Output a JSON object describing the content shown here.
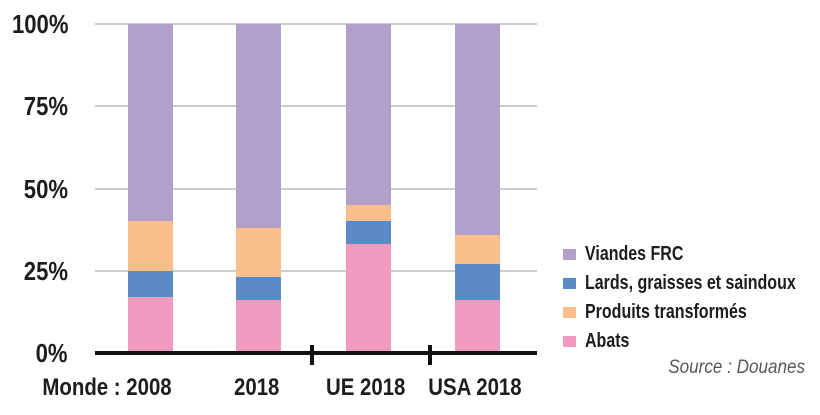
{
  "chart_data": {
    "type": "bar",
    "stacked": true,
    "unit": "percent",
    "categories": [
      "Monde : 2008",
      "2018",
      "UE 2018",
      "USA 2018"
    ],
    "series": [
      {
        "name": "Abats",
        "color": "#f29bc1",
        "values": [
          17,
          16,
          33,
          16
        ]
      },
      {
        "name": "Lards, graisses et saindoux",
        "color": "#5b8bc7",
        "values": [
          8,
          7,
          7,
          11
        ]
      },
      {
        "name": "Produits transformés",
        "color": "#fbbf8d",
        "values": [
          15,
          15,
          5,
          9
        ]
      },
      {
        "name": "Viandes FRC",
        "color": "#b0a0ca",
        "values": [
          60,
          62,
          55,
          64
        ]
      }
    ],
    "y_axis": {
      "min": 0,
      "max": 100,
      "ticks": [
        {
          "label": "0%",
          "value": 0
        },
        {
          "label": "25%",
          "value": 25
        },
        {
          "label": "50%",
          "value": 50
        },
        {
          "label": "75%",
          "value": 75
        },
        {
          "label": "100%",
          "value": 100
        }
      ],
      "gridlines": true
    },
    "legend_position": "right",
    "source": "Source : Douanes"
  },
  "legend": {
    "items": [
      {
        "label": "Viandes FRC",
        "color": "#b0a0ca"
      },
      {
        "label": "Lards, graisses et saindoux",
        "color": "#5b8bc7"
      },
      {
        "label": "Produits transformés",
        "color": "#fbbf8d"
      },
      {
        "label": "Abats",
        "color": "#f29bc1"
      }
    ]
  },
  "colors": {
    "gridline": "#cccccc",
    "axis": "#111111",
    "text": "#1d1d1f",
    "source_text": "#58585a"
  }
}
